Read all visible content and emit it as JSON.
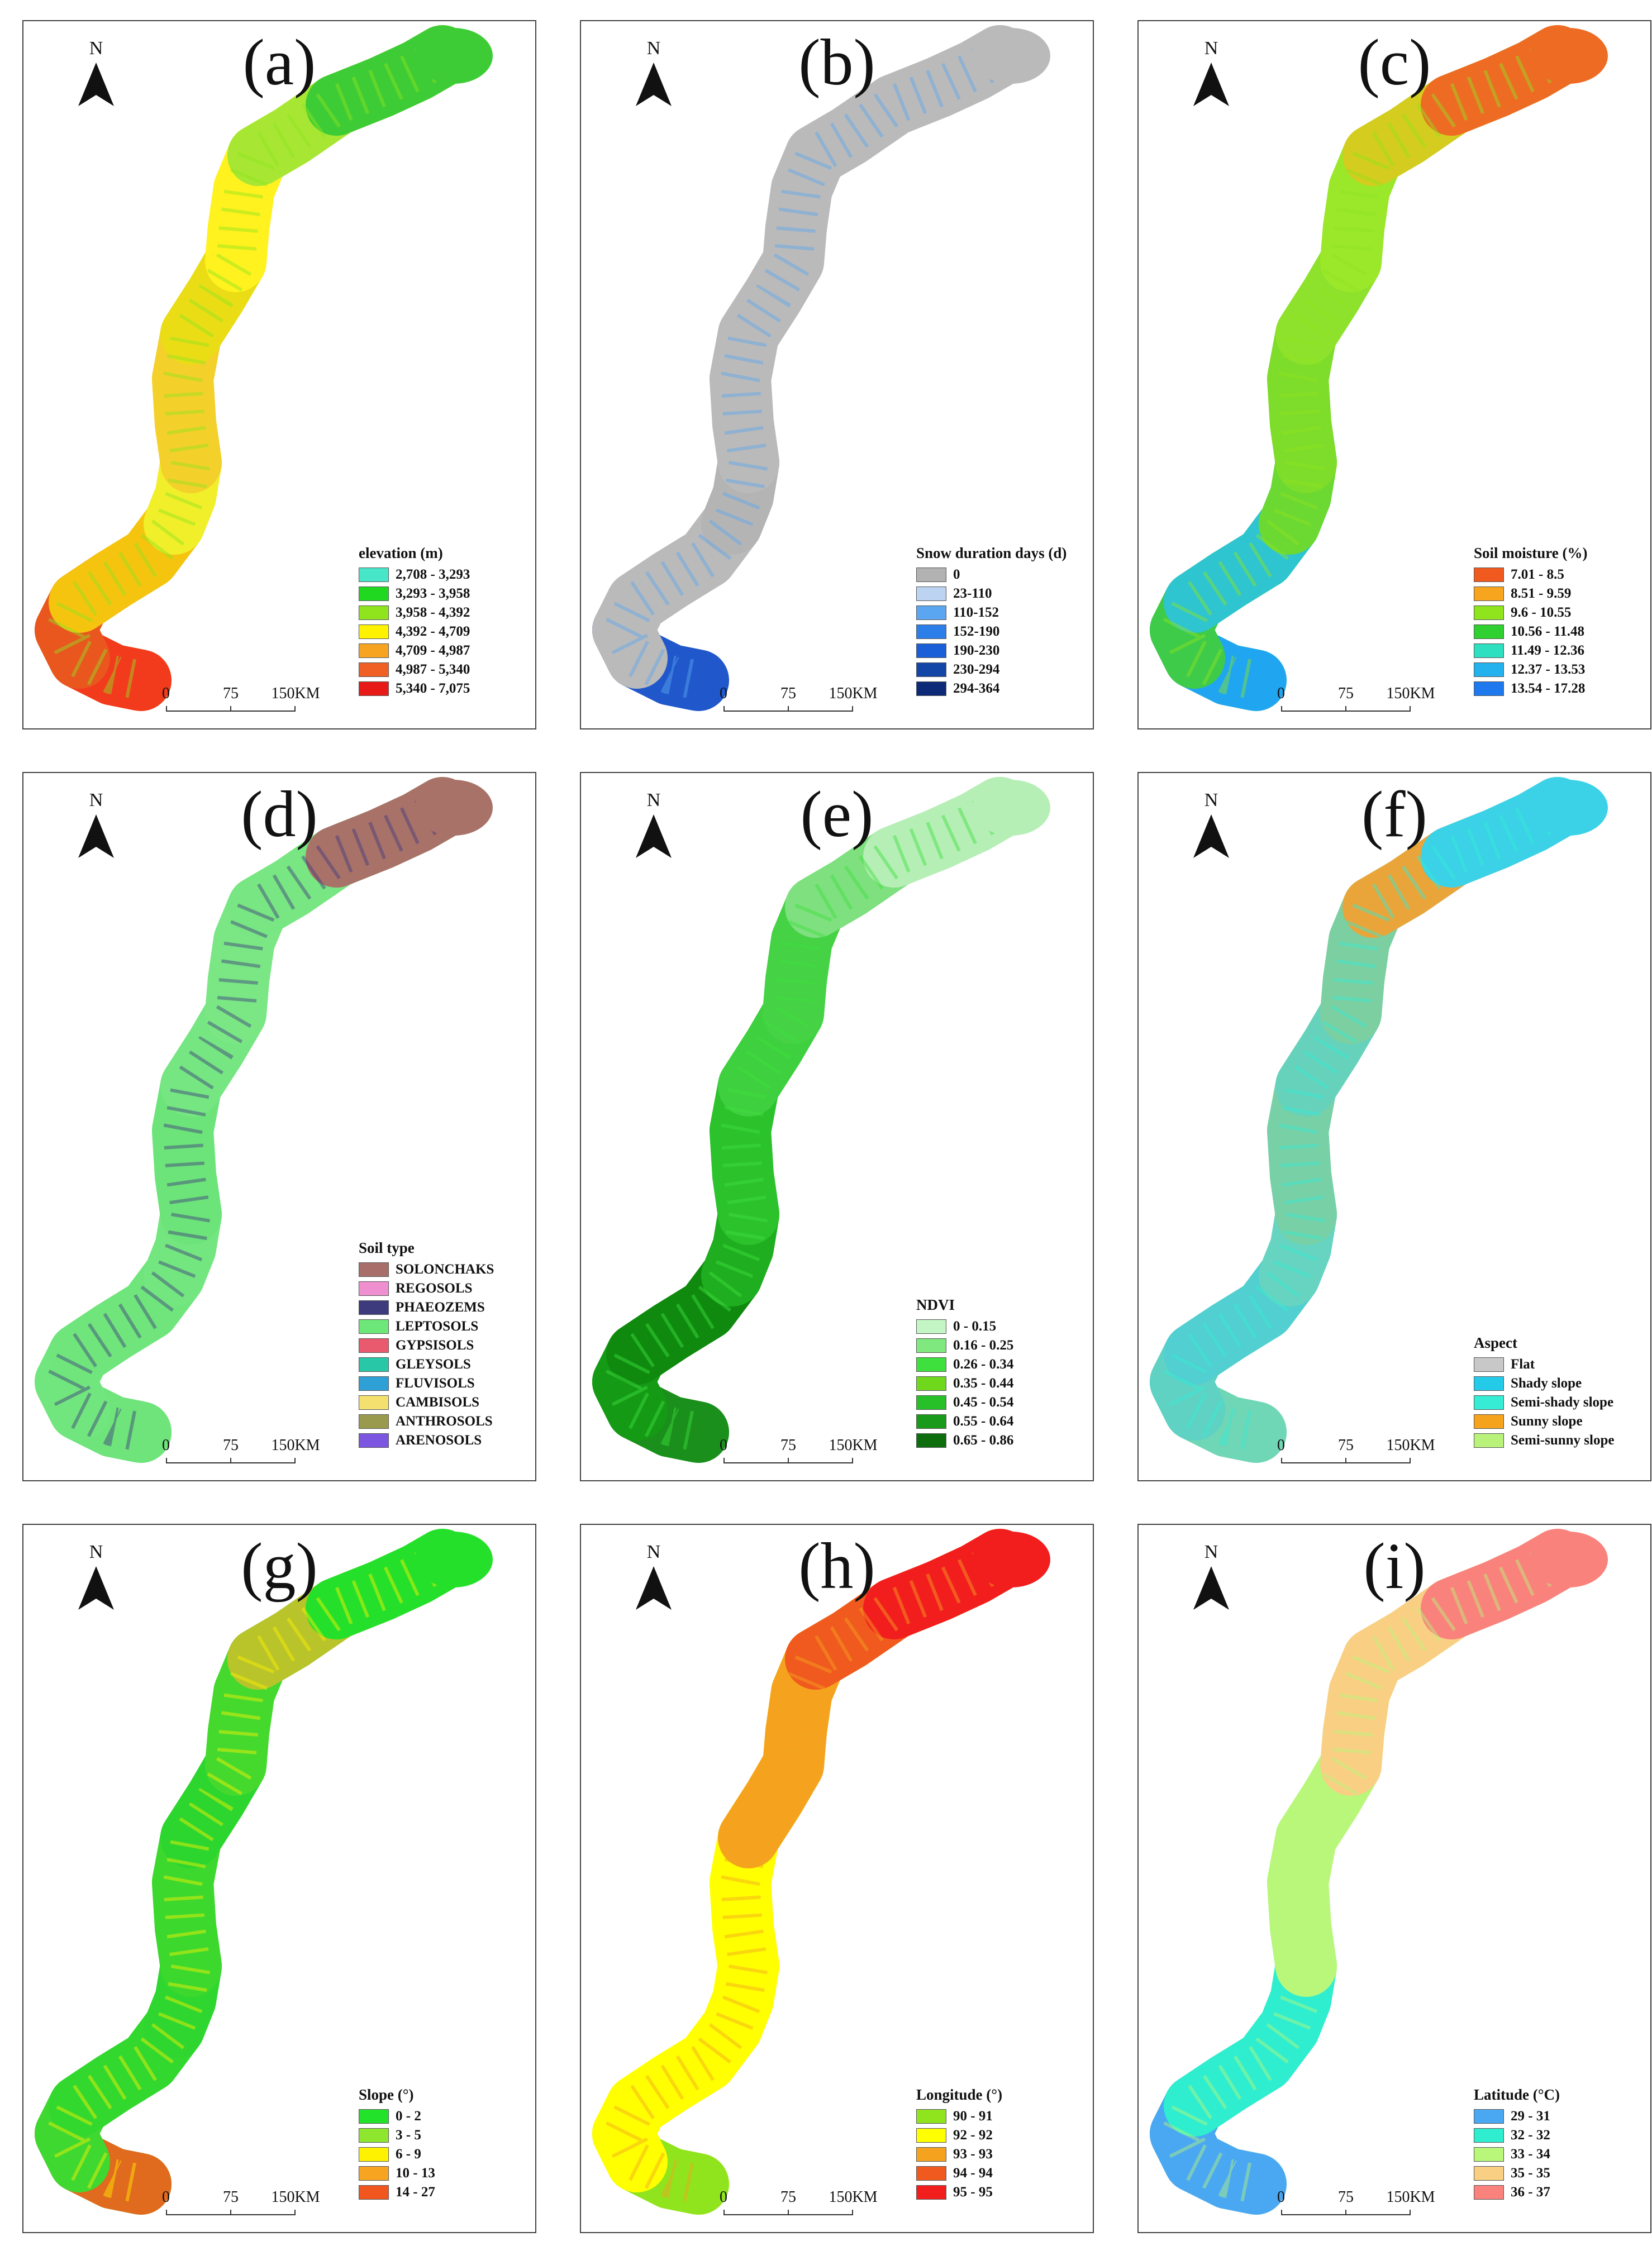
{
  "figure": {
    "north_label": "N",
    "scale_labels": [
      "0",
      "75",
      "150KM"
    ],
    "panels": [
      {
        "label": "(a)",
        "legend_title": "elevation (m)",
        "band_colors": [
          "#f23a1c",
          "#e9571f",
          "#f5c40f",
          "#f0ef2a",
          "#f4d02b",
          "#eadd16",
          "#fff21e",
          "#a7e733",
          "#3ecc36"
        ],
        "legend": [
          {
            "label": "2,708 - 3,293",
            "color": "#48e6c8"
          },
          {
            "label": "3,293 - 3,958",
            "color": "#1fd81f"
          },
          {
            "label": "3,958 - 4,392",
            "color": "#8fe41e"
          },
          {
            "label": "4,392 - 4,709",
            "color": "#fff200"
          },
          {
            "label": "4,709 - 4,987",
            "color": "#f7a520"
          },
          {
            "label": "4,987 - 5,340",
            "color": "#f06025"
          },
          {
            "label": "5,340 - 7,075",
            "color": "#e81a17"
          }
        ]
      },
      {
        "label": "(b)",
        "legend_title": "Snow duration days (d)",
        "band_colors": [
          "#2058cc",
          "#bababa",
          "#bababa",
          "#b4b4b4",
          "#bababa",
          "#bababa",
          "#bababa",
          "#bababa",
          "#bababa"
        ],
        "legend": [
          {
            "label": "0",
            "color": "#b2b2b2"
          },
          {
            "label": "23-110",
            "color": "#bcd4f2"
          },
          {
            "label": "110-152",
            "color": "#5aa6f0"
          },
          {
            "label": "152-190",
            "color": "#2c7ee8"
          },
          {
            "label": "190-230",
            "color": "#1a5fd8"
          },
          {
            "label": "230-294",
            "color": "#1446a8"
          },
          {
            "label": "294-364",
            "color": "#0c2a78"
          }
        ]
      },
      {
        "label": "(c)",
        "legend_title": "Soil moisture (%)",
        "band_colors": [
          "#20a6f0",
          "#3fcb4a",
          "#2fc5d0",
          "#6cd832",
          "#7edc2a",
          "#8ee22c",
          "#9be72a",
          "#d4cc1e",
          "#ee6b24"
        ],
        "legend": [
          {
            "label": "7.01 - 8.5",
            "color": "#f05a1e"
          },
          {
            "label": "8.51 - 9.59",
            "color": "#f7a41e"
          },
          {
            "label": "9.6 - 10.55",
            "color": "#8fe41e"
          },
          {
            "label": "10.56 - 11.48",
            "color": "#2fd02f"
          },
          {
            "label": "11.49 - 12.36",
            "color": "#2fe0c0"
          },
          {
            "label": "12.37 - 13.53",
            "color": "#23b2ee"
          },
          {
            "label": "13.54 - 17.28",
            "color": "#1e78ee"
          }
        ]
      },
      {
        "label": "(d)",
        "legend_title": "Soil type",
        "band_colors": [
          "#6ee47a",
          "#72e67e",
          "#6fe57c",
          "#74e680",
          "#6de47a",
          "#76e682",
          "#7ae784",
          "#78e682",
          "#a97268"
        ],
        "legend": [
          {
            "label": "SOLONCHAKS",
            "color": "#a86f6a"
          },
          {
            "label": "REGOSOLS",
            "color": "#f08fd0"
          },
          {
            "label": "PHAEOZEMS",
            "color": "#3d3a7e"
          },
          {
            "label": "LEPTOSOLS",
            "color": "#6de878"
          },
          {
            "label": "GYPSISOLS",
            "color": "#e95a6e"
          },
          {
            "label": "GLEYSOLS",
            "color": "#28c7a8"
          },
          {
            "label": "FLUVISOLS",
            "color": "#2ea0d6"
          },
          {
            "label": "CAMBISOLS",
            "color": "#f4e06e"
          },
          {
            "label": "ANTHROSOLS",
            "color": "#9a9a4e"
          },
          {
            "label": "ARENOSOLS",
            "color": "#7c55e0"
          }
        ]
      },
      {
        "label": "(e)",
        "legend_title": "NDVI",
        "band_colors": [
          "#1b8f1b",
          "#159a15",
          "#0f8a0f",
          "#1fae1f",
          "#2cc22c",
          "#3fd03f",
          "#45d245",
          "#7ee07e",
          "#b6efb6"
        ],
        "legend": [
          {
            "label": "0 - 0.15",
            "color": "#c4f5c4"
          },
          {
            "label": "0.16 - 0.25",
            "color": "#7fe87f"
          },
          {
            "label": "0.26 - 0.34",
            "color": "#3de03d"
          },
          {
            "label": "0.35 - 0.44",
            "color": "#70d81c"
          },
          {
            "label": "0.45 - 0.54",
            "color": "#28c028"
          },
          {
            "label": "0.55 - 0.64",
            "color": "#1a9a1a"
          },
          {
            "label": "0.65 - 0.86",
            "color": "#0e6e0e"
          }
        ]
      },
      {
        "label": "(f)",
        "legend_title": "Aspect",
        "band_colors": [
          "#6fd6b6",
          "#5fd2c4",
          "#52cfd0",
          "#66d4c0",
          "#78d0a6",
          "#66d2bc",
          "#7ccfa0",
          "#e9a53a",
          "#3bd2e8"
        ],
        "legend": [
          {
            "label": "Flat",
            "color": "#c8c8c8"
          },
          {
            "label": "Shady slope",
            "color": "#23cbe8"
          },
          {
            "label": "Semi-shady slope",
            "color": "#36ecd4"
          },
          {
            "label": "Sunny slope",
            "color": "#f5a31c"
          },
          {
            "label": "Semi-sunny slope",
            "color": "#b8f27a"
          }
        ]
      },
      {
        "label": "(g)",
        "legend_title": "Slope (°)",
        "band_colors": [
          "#e06a1e",
          "#3fd830",
          "#33d82f",
          "#2fd62f",
          "#3cd82e",
          "#2dd52f",
          "#45d92e",
          "#b9c42a",
          "#24e02a"
        ],
        "legend": [
          {
            "label": "0 - 2",
            "color": "#22e22a"
          },
          {
            "label": "3 - 5",
            "color": "#8ee62e"
          },
          {
            "label": "6 - 9",
            "color": "#fff200"
          },
          {
            "label": "10 - 13",
            "color": "#f7a520"
          },
          {
            "label": "14 - 27",
            "color": "#f0561e"
          }
        ]
      },
      {
        "label": "(h)",
        "legend_title": "Longitude (°)",
        "band_colors": [
          "#8fe41e",
          "#ffff00",
          "#ffff00",
          "#ffff00",
          "#ffff00",
          "#f5a31e",
          "#f5a31e",
          "#f05a1e",
          "#f21e1e"
        ],
        "legend": [
          {
            "label": "90 - 91",
            "color": "#8fe41e"
          },
          {
            "label": "92 - 92",
            "color": "#ffff00"
          },
          {
            "label": "93 - 93",
            "color": "#f5a31e"
          },
          {
            "label": "94 - 94",
            "color": "#f05a1e"
          },
          {
            "label": "95 - 95",
            "color": "#f21e1e"
          }
        ]
      },
      {
        "label": "(i)",
        "legend_title": "Latitude (°C)",
        "band_colors": [
          "#4aa8f2",
          "#4aa8f2",
          "#2eeecf",
          "#2eeecf",
          "#b9f77a",
          "#b9f77a",
          "#f9cf84",
          "#f9cf84",
          "#f9827c"
        ],
        "legend": [
          {
            "label": "29 - 31",
            "color": "#4aa8f2"
          },
          {
            "label": "32 - 32",
            "color": "#2eeecf"
          },
          {
            "label": "33 - 34",
            "color": "#b9f77a"
          },
          {
            "label": "35 - 35",
            "color": "#f9cf84"
          },
          {
            "label": "36 - 37",
            "color": "#f9827c"
          }
        ]
      }
    ]
  }
}
